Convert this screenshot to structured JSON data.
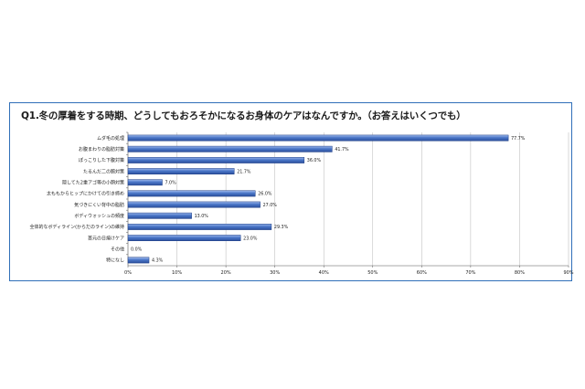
{
  "chart_data": {
    "type": "bar",
    "orientation": "horizontal",
    "title": "Q1.冬の厚着をする時期、どうしてもおろそかになるお身体のケアはなんですか。（お答えはいくつでも）",
    "categories": [
      "ムダ毛の処理",
      "お腹まわりの脂肪対策",
      "ぽっこりした下腹対策",
      "たるんだ二の腕対策",
      "隠してた2重アゴ等の小顔対策",
      "太ももからヒップにかけての引き締め",
      "気づきにくい背中の脂肪",
      "ボディウォッシュの頻度",
      "全体的なボディライン(からだのライン)の維持",
      "首元の日焼けケア",
      "その他",
      "特になし"
    ],
    "values": [
      77.7,
      41.7,
      36.0,
      21.7,
      7.0,
      26.0,
      27.0,
      13.0,
      29.3,
      23.0,
      0.0,
      4.3
    ],
    "value_labels": [
      "77.7%",
      "41.7%",
      "36.0%",
      "21.7%",
      "7.0%",
      "26.0%",
      "27.0%",
      "13.0%",
      "29.3%",
      "23.0%",
      "0.0%",
      "4.3%"
    ],
    "xlim": [
      0,
      90
    ],
    "x_ticks": [
      "0%",
      "10%",
      "20%",
      "30%",
      "40%",
      "50%",
      "60%",
      "70%",
      "80%",
      "90%"
    ],
    "grid": true,
    "bar_color": "#4a76c8",
    "bar_edge_color": "#1f3f86"
  }
}
